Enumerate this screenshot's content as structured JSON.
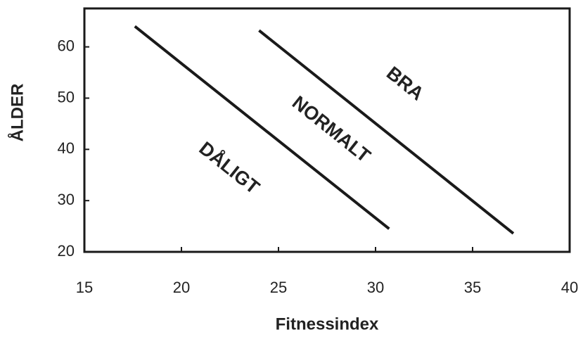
{
  "chart_data": {
    "type": "line",
    "x_label": "Fitnessindex",
    "y_label": "ÅLDER",
    "xlim": [
      15,
      40
    ],
    "xticks": [
      15,
      20,
      25,
      30,
      35,
      40
    ],
    "ylim": [
      20,
      67.5
    ],
    "yticks": [
      20,
      30,
      40,
      50,
      60
    ],
    "series": [
      {
        "color": "#1a1a1a",
        "x": [
          17.6,
          30.7
        ],
        "values": [
          64,
          24.5
        ]
      },
      {
        "color": "#1a1a1a",
        "x": [
          24.0,
          37.1
        ],
        "values": [
          63.2,
          23.6
        ]
      }
    ],
    "annotations": [
      "DÅLIGT",
      "NORMALT",
      "BRA"
    ]
  }
}
